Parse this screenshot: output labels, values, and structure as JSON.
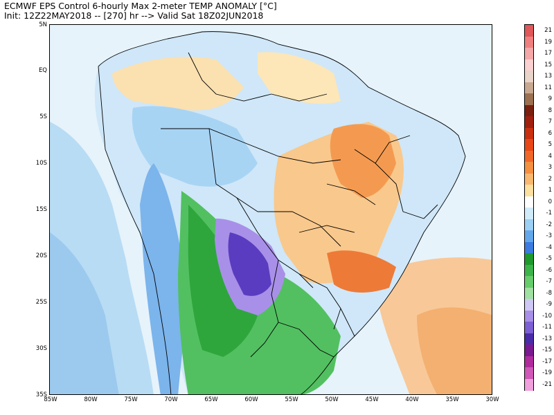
{
  "header": {
    "title": "ECMWF EPS Control 6-hourly Max 2-meter TEMP ANOMALY [°C]",
    "subtitle": "Init: 12Z22MAY2018 -- [270] hr --> Valid Sat 18Z02JUN2018"
  },
  "axes": {
    "lat_labels": [
      "5N",
      "EQ",
      "5S",
      "10S",
      "15S",
      "20S",
      "25S",
      "30S",
      "35S"
    ],
    "lon_labels": [
      "85W",
      "80W",
      "75W",
      "70W",
      "65W",
      "60W",
      "55W",
      "50W",
      "45W",
      "40W",
      "35W",
      "30W"
    ]
  },
  "colorbar": {
    "labels": [
      "21",
      "19",
      "17",
      "15",
      "13",
      "11",
      "9",
      "8",
      "7",
      "6",
      "5",
      "4",
      "3",
      "2",
      "1",
      "0",
      "-1",
      "-2",
      "-3",
      "-4",
      "-5",
      "-6",
      "-7",
      "-8",
      "-9",
      "-10",
      "-11",
      "-13",
      "-15",
      "-17",
      "-19",
      "-21"
    ],
    "colors": [
      "#e0585a",
      "#f08080",
      "#f5a8a8",
      "#fbd0d0",
      "#e8d4c8",
      "#c8a890",
      "#9c7050",
      "#7a2010",
      "#a02010",
      "#c83010",
      "#e84818",
      "#f06828",
      "#f49040",
      "#f8b870",
      "#fce0a0",
      "#ffffff",
      "#d0ecfa",
      "#9cd0f4",
      "#64a8ec",
      "#3c7ce0",
      "#1e9a2c",
      "#3cb44a",
      "#66cc6c",
      "#a0e0a0",
      "#d0c8f4",
      "#a890e8",
      "#7c60d4",
      "#4a2ca8",
      "#7a1a90",
      "#b02c9c",
      "#d058b8",
      "#f0a0dc"
    ]
  },
  "map": {
    "land_base": "#dcecf8",
    "ocean_base": "#e4f2fa"
  }
}
